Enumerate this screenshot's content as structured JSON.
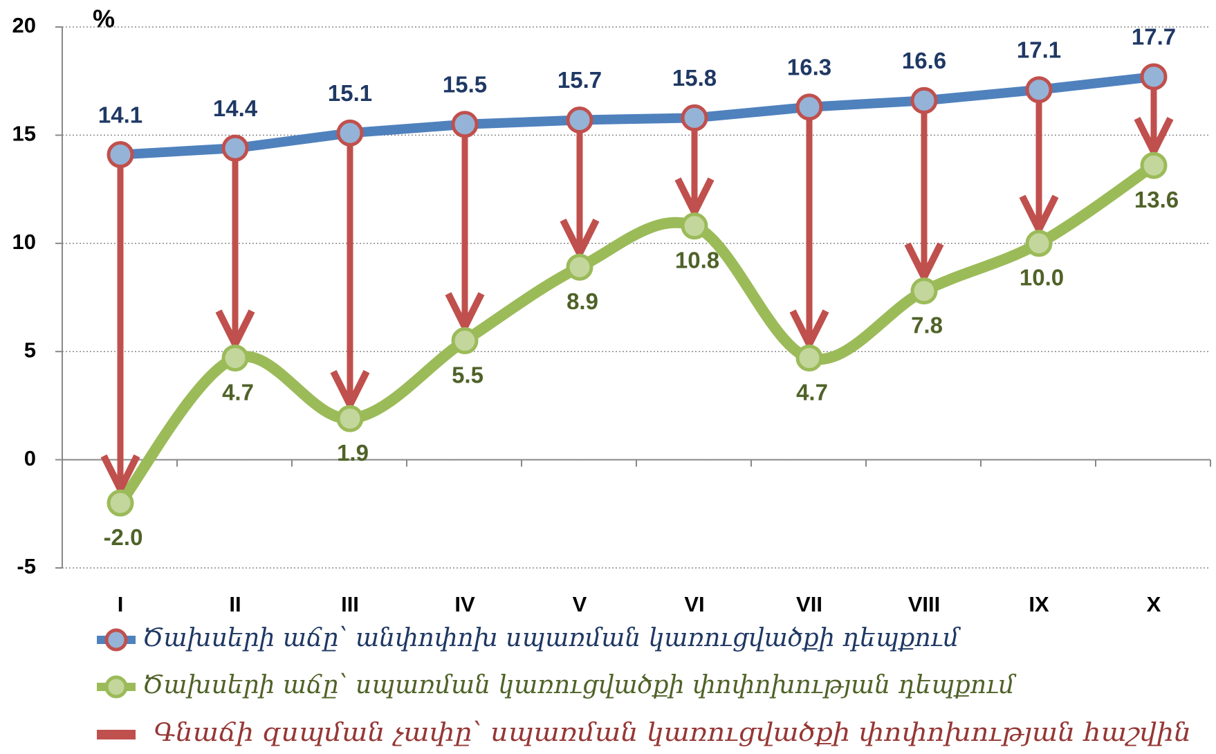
{
  "chart_data": {
    "type": "line",
    "y_label": "%",
    "categories": [
      "I",
      "II",
      "III",
      "IV",
      "V",
      "VI",
      "VII",
      "VIII",
      "IX",
      "X"
    ],
    "series": [
      {
        "name": "Ծախսերի աճը՝ անփոփոխ սպառման կառուցվածքի դեպքում",
        "color": "#4f81bd",
        "marker_fill": "#95b3d7",
        "marker_stroke": "#c0504d",
        "label_color": "#1f3864",
        "smooth": false,
        "values": [
          14.1,
          14.4,
          15.1,
          15.5,
          15.7,
          15.8,
          16.3,
          16.6,
          17.1,
          17.7
        ]
      },
      {
        "name": "Ծախսերի աճը՝ սպառման կառուցվածքի փոփոխության դեպքում",
        "color": "#9bbb59",
        "marker_fill": "#c3d69b",
        "marker_stroke": "#9bbb59",
        "label_color": "#4f6228",
        "smooth": true,
        "values": [
          -2,
          4.7,
          1.9,
          5.5,
          8.9,
          10.8,
          4.7,
          7.8,
          10,
          13.6
        ],
        "value_labels": [
          "-2.0",
          "4.7",
          "1.9",
          "5.5",
          "8.9",
          "10.8",
          "4.7",
          "7.8",
          "10.0",
          "13.6"
        ]
      }
    ],
    "arrows": {
      "name": "Գնաճի զսպման չափը՝ սպառման կառուցվածքի փոփոխության հաշվին",
      "color": "#c0504d",
      "label_color": "#953735"
    },
    "ylim": [
      -5,
      20
    ],
    "yticks": [
      -5,
      0,
      5,
      10,
      15,
      20
    ],
    "grid": true
  }
}
